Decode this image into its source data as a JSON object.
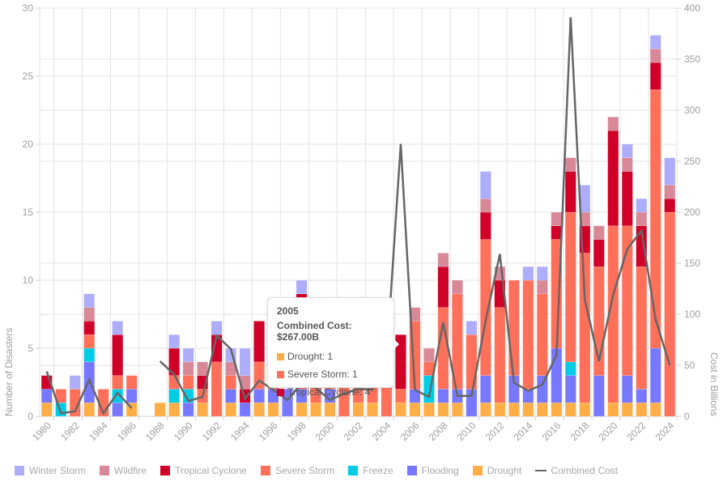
{
  "chart_data": {
    "type": "bar",
    "stacked": true,
    "title": "",
    "xlabel": "",
    "ylabel": "Number of Disasters",
    "y2label": "Cost in Billions",
    "ylim": [
      0,
      30
    ],
    "y2lim": [
      0,
      400
    ],
    "yticks": [
      "0",
      "5",
      "10",
      "15",
      "20",
      "25",
      "30"
    ],
    "y2ticks": [
      "0",
      "50",
      "100",
      "150",
      "200",
      "250",
      "300",
      "350",
      "400"
    ],
    "grid": true,
    "legend_position": "bottom-left",
    "categories": [
      "1980",
      "1981",
      "1982",
      "1983",
      "1984",
      "1985",
      "1986",
      "1987",
      "1988",
      "1989",
      "1990",
      "1991",
      "1992",
      "1993",
      "1994",
      "1995",
      "1996",
      "1997",
      "1998",
      "1999",
      "2000",
      "2001",
      "2002",
      "2003",
      "2004",
      "2005",
      "2006",
      "2007",
      "2008",
      "2009",
      "2010",
      "2011",
      "2012",
      "2013",
      "2014",
      "2015",
      "2016",
      "2017",
      "2018",
      "2019",
      "2020",
      "2021",
      "2022",
      "2023",
      "2024"
    ],
    "xtick_labels": [
      "1980",
      "1982",
      "1984",
      "1986",
      "1988",
      "1990",
      "1992",
      "1994",
      "1996",
      "1998",
      "2000",
      "2002",
      "2004",
      "2006",
      "2008",
      "2010",
      "2012",
      "2014",
      "2016",
      "2018",
      "2020",
      "2022",
      "2024"
    ],
    "series": [
      {
        "name": "Drought",
        "color": "#FFAD47",
        "values": [
          1,
          0,
          0,
          1,
          0,
          0,
          1,
          0,
          1,
          1,
          0,
          1,
          0,
          1,
          0,
          1,
          1,
          0,
          1,
          1,
          1,
          0,
          1,
          1,
          0,
          1,
          1,
          1,
          1,
          1,
          0,
          1,
          1,
          1,
          1,
          1,
          1,
          1,
          1,
          0,
          1,
          1,
          1,
          1,
          0
        ]
      },
      {
        "name": "Flooding",
        "color": "#7878FF",
        "values": [
          1,
          0,
          0,
          3,
          0,
          1,
          1,
          0,
          0,
          0,
          1,
          0,
          0,
          1,
          1,
          1,
          1,
          2,
          1,
          0,
          1,
          0,
          0,
          0,
          0,
          0,
          1,
          0,
          1,
          1,
          2,
          2,
          0,
          2,
          1,
          2,
          4,
          2,
          0,
          3,
          0,
          2,
          1,
          4,
          0
        ]
      },
      {
        "name": "Freeze",
        "color": "#00CCE6",
        "values": [
          0,
          1,
          0,
          1,
          0,
          1,
          0,
          0,
          0,
          1,
          1,
          0,
          0,
          0,
          0,
          0,
          0,
          0,
          0,
          0,
          0,
          0,
          0,
          0,
          0,
          0,
          0,
          2,
          0,
          0,
          0,
          0,
          0,
          0,
          0,
          0,
          0,
          1,
          0,
          0,
          0,
          0,
          0,
          0,
          0
        ]
      },
      {
        "name": "Severe Storm",
        "color": "#FF705A",
        "values": [
          0,
          1,
          2,
          1,
          2,
          1,
          1,
          0,
          0,
          1,
          1,
          1,
          4,
          1,
          0,
          2,
          1,
          0,
          1,
          2,
          1,
          3,
          3,
          2,
          3,
          1,
          5,
          1,
          6,
          7,
          4,
          10,
          7,
          7,
          8,
          6,
          8,
          11,
          11,
          8,
          13,
          11,
          9,
          19,
          15
        ]
      },
      {
        "name": "Tropical Cyclone",
        "color": "#D00028",
        "values": [
          1,
          0,
          0,
          1,
          0,
          3,
          0,
          0,
          0,
          2,
          0,
          1,
          2,
          0,
          1,
          3,
          0,
          0,
          6,
          1,
          0,
          0,
          0,
          0,
          0,
          4,
          0,
          0,
          3,
          0,
          0,
          2,
          2,
          0,
          0,
          0,
          1,
          3,
          2,
          2,
          7,
          4,
          3,
          2,
          1
        ]
      },
      {
        "name": "Wildfire",
        "color": "#D98897",
        "values": [
          0,
          0,
          0,
          1,
          0,
          0,
          0,
          0,
          0,
          0,
          1,
          1,
          0,
          1,
          1,
          0,
          0,
          0,
          0,
          0,
          0,
          0,
          0,
          0,
          0,
          0,
          1,
          1,
          1,
          1,
          0,
          1,
          1,
          0,
          0,
          1,
          1,
          1,
          1,
          1,
          1,
          1,
          1,
          1,
          1
        ]
      },
      {
        "name": "Winter Storm",
        "color": "#ADADFA",
        "values": [
          0,
          0,
          1,
          1,
          0,
          1,
          0,
          0,
          0,
          1,
          1,
          0,
          1,
          1,
          2,
          0,
          0,
          0,
          1,
          0,
          0,
          0,
          0,
          0,
          0,
          0,
          0,
          0,
          0,
          0,
          1,
          2,
          0,
          0,
          1,
          1,
          0,
          0,
          2,
          0,
          0,
          1,
          1,
          1,
          2
        ]
      },
      {
        "name": "Combined Cost",
        "color": "#666666",
        "type": "line",
        "axis": "y2",
        "values": [
          44,
          3,
          5,
          36,
          3,
          23,
          8,
          null,
          54,
          41,
          15,
          19,
          79,
          66,
          17,
          35,
          26,
          16,
          32,
          28,
          16,
          22,
          27,
          26,
          56,
          267,
          26,
          19,
          92,
          20,
          20,
          94,
          159,
          33,
          25,
          31,
          60,
          391,
          114,
          54,
          119,
          164,
          182,
          95,
          50
        ]
      }
    ]
  },
  "legend": {
    "items": [
      {
        "label": "Winter Storm",
        "color": "#ADADFA",
        "kind": "box"
      },
      {
        "label": "Wildfire",
        "color": "#D98897",
        "kind": "box"
      },
      {
        "label": "Tropical Cyclone",
        "color": "#D00028",
        "kind": "box"
      },
      {
        "label": "Severe Storm",
        "color": "#FF705A",
        "kind": "box"
      },
      {
        "label": "Freeze",
        "color": "#00CCE6",
        "kind": "box"
      },
      {
        "label": "Flooding",
        "color": "#7878FF",
        "kind": "box"
      },
      {
        "label": "Drought",
        "color": "#FFAD47",
        "kind": "box"
      },
      {
        "label": "Combined Cost",
        "color": "#666666",
        "kind": "line"
      }
    ]
  },
  "tooltip": {
    "title": "2005",
    "cost": "Combined Cost: $267.00B",
    "rows": [
      {
        "label": "Drought: 1",
        "color": "#FFAD47"
      },
      {
        "label": "Severe Storm: 1",
        "color": "#FF705A"
      },
      {
        "label": "Tropical Cyclone: 4",
        "color": "#D00028"
      }
    ]
  }
}
